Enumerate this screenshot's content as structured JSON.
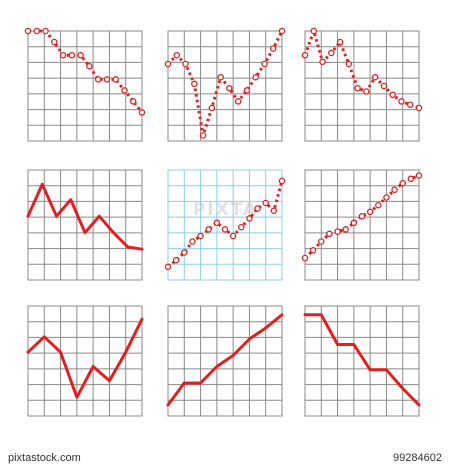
{
  "chart_data": [
    {
      "type": "line",
      "marker_style": "rings",
      "grid_color": "#8a8a8a",
      "series_color": "#e02020",
      "x": [
        0,
        1,
        2,
        3,
        4,
        5,
        6,
        7,
        8,
        9,
        10,
        11,
        12,
        13
      ],
      "values": [
        100,
        100,
        100,
        90,
        78,
        78,
        78,
        68,
        56,
        56,
        56,
        46,
        36,
        26
      ]
    },
    {
      "type": "line",
      "marker_style": "rings",
      "grid_color": "#8a8a8a",
      "series_color": "#e02020",
      "x": [
        0,
        1,
        2,
        3,
        4,
        5,
        6,
        7,
        8,
        9,
        10,
        11,
        12,
        13
      ],
      "values": [
        70,
        78,
        70,
        52,
        5,
        30,
        58,
        48,
        36,
        46,
        58,
        70,
        84,
        100
      ]
    },
    {
      "type": "line",
      "marker_style": "rings",
      "grid_color": "#8a8a8a",
      "series_color": "#e02020",
      "x": [
        0,
        1,
        2,
        3,
        4,
        5,
        6,
        7,
        8,
        9,
        10,
        11,
        12,
        13
      ],
      "values": [
        78,
        100,
        72,
        80,
        90,
        70,
        48,
        45,
        58,
        50,
        42,
        36,
        33,
        30
      ]
    },
    {
      "type": "line",
      "marker_style": "none",
      "grid_color": "#8a8a8a",
      "series_color": "#e02020",
      "x": [
        0,
        1,
        2,
        3,
        4,
        5,
        6,
        7,
        8
      ],
      "values": [
        58,
        87,
        58,
        73,
        43,
        58,
        43,
        30,
        28
      ]
    },
    {
      "type": "line",
      "marker_style": "rings",
      "grid_color": "#8ecde8",
      "series_color": "#e02020",
      "x": [
        0,
        1,
        2,
        3,
        4,
        5,
        6,
        7,
        8,
        9,
        10,
        11,
        12,
        13,
        14
      ],
      "values": [
        12,
        18,
        25,
        35,
        40,
        46,
        52,
        46,
        40,
        48,
        56,
        65,
        70,
        63,
        90
      ]
    },
    {
      "type": "line",
      "marker_style": "rings",
      "grid_color": "#8a8a8a",
      "series_color": "#e02020",
      "x": [
        0,
        1,
        2,
        3,
        4,
        5,
        6,
        7,
        8,
        9,
        10,
        11,
        12,
        13,
        14
      ],
      "values": [
        20,
        27,
        35,
        42,
        44,
        46,
        52,
        58,
        62,
        68,
        75,
        82,
        88,
        92,
        95
      ]
    },
    {
      "type": "line",
      "marker_style": "none",
      "grid_color": "#8a8a8a",
      "series_color": "#e02020",
      "x": [
        0,
        1,
        2,
        3,
        4,
        5,
        6,
        7
      ],
      "values": [
        58,
        72,
        58,
        17,
        45,
        32,
        58,
        88
      ]
    },
    {
      "type": "line",
      "marker_style": "none",
      "grid_color": "#8a8a8a",
      "series_color": "#e02020",
      "x": [
        0,
        1,
        2,
        3,
        4,
        5,
        6,
        7
      ],
      "values": [
        10,
        30,
        30,
        45,
        55,
        70,
        80,
        92
      ]
    },
    {
      "type": "line",
      "marker_style": "none",
      "grid_color": "#8a8a8a",
      "series_color": "#e02020",
      "x": [
        0,
        1,
        2,
        3,
        4,
        5,
        6,
        7
      ],
      "values": [
        92,
        92,
        65,
        65,
        42,
        42,
        25,
        10
      ]
    }
  ],
  "watermark": {
    "text": "PIXTA"
  },
  "footer": {
    "site": "pixtastock.com",
    "image_id": "99284602"
  }
}
